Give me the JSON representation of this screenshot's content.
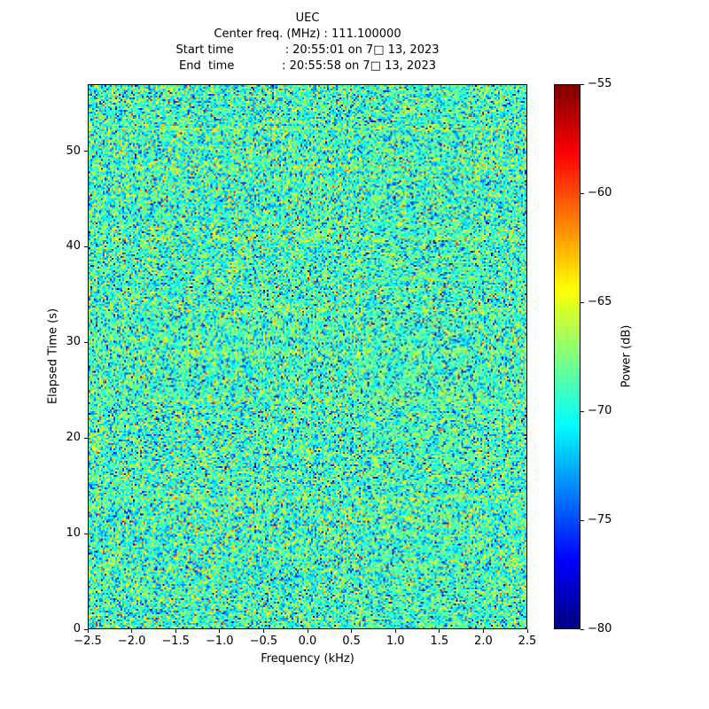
{
  "chart_data": {
    "type": "heatmap",
    "title": "UEC",
    "title_lines": [
      "UEC",
      "Center freq. (MHz) : 111.100000",
      "Start time              : 20:55:01 on 7□ 13, 2023",
      "End  time             : 20:55:58 on 7□ 13, 2023"
    ],
    "center_freq_mhz": "111.100000",
    "start_time": "20:55:01 on 7□ 13, 2023",
    "end_time": "20:55:58 on 7□ 13, 2023",
    "xlabel": "Frequency (kHz)",
    "ylabel": "Elapsed Time (s)",
    "xlim": [
      -2.5,
      2.5
    ],
    "ylim": [
      0,
      57
    ],
    "grid": false,
    "xticks": {
      "values": [
        -2.5,
        -2.0,
        -1.5,
        -1.0,
        -0.5,
        0.0,
        0.5,
        1.0,
        1.5,
        2.0,
        2.5
      ],
      "labels": [
        "−2.5",
        "−2.0",
        "−1.5",
        "−1.0",
        "−0.5",
        "0.0",
        "0.5",
        "1.0",
        "1.5",
        "2.0",
        "2.5"
      ]
    },
    "yticks": {
      "values": [
        0,
        10,
        20,
        30,
        40,
        50
      ],
      "labels": [
        "0",
        "10",
        "20",
        "30",
        "40",
        "50"
      ]
    },
    "colorbar": {
      "label": "Power (dB)",
      "min": -80,
      "max": -55,
      "colormap": "jet",
      "position": "right",
      "ticks": [
        -55,
        -60,
        -65,
        -70,
        -75,
        -80
      ],
      "labels": [
        "−55",
        "−60",
        "−65",
        "−70",
        "−75",
        "−80"
      ]
    },
    "heatmap": {
      "description": "Broadband RF noise spectrogram; random speckle around the noise floor with faint warmer horizontal streaks",
      "mean_db": -69.3,
      "std_db": 3.0,
      "clip_db": [
        -80,
        -55
      ],
      "hot_pixel_probability": 0.015,
      "band_times_s": [
        52.5,
        48.5,
        41,
        33.5,
        29,
        24,
        13.5
      ],
      "band_bias_db": 1.4,
      "cols": 248,
      "rows": 308,
      "seed": 20230713
    }
  }
}
